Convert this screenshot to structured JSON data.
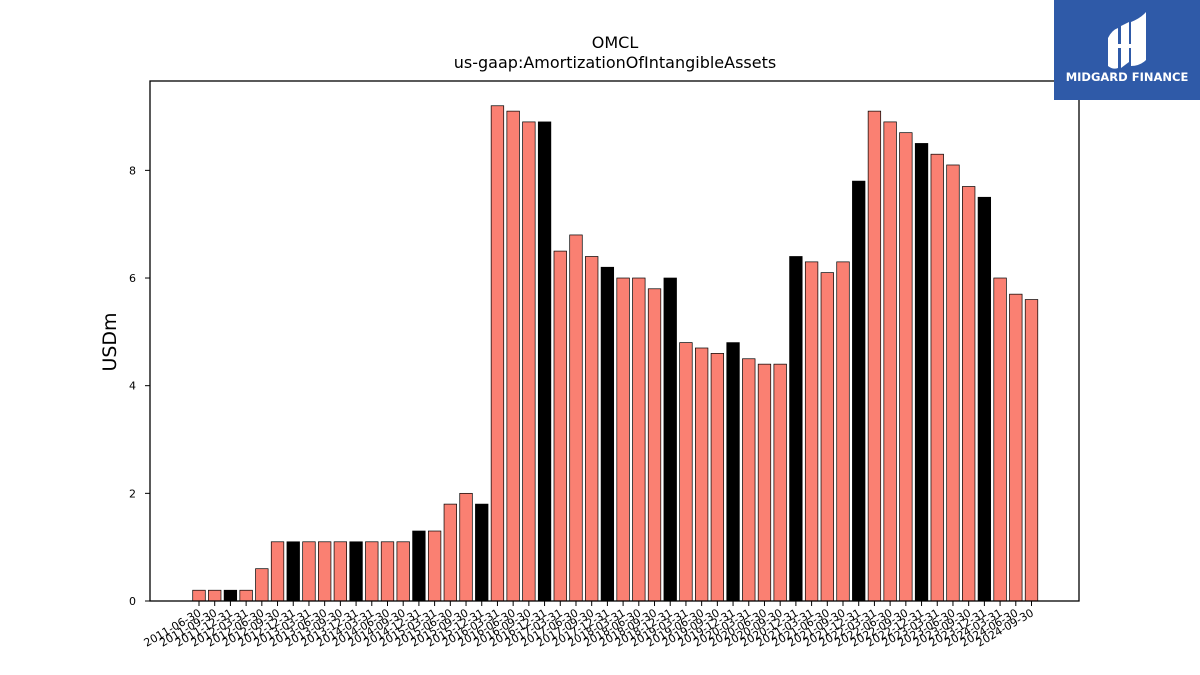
{
  "logo": {
    "text": "MIDGARD FINANCE",
    "background": "#2f5aa8"
  },
  "chart_data": {
    "type": "bar",
    "title": "OMCL",
    "subtitle": "us-gaap:AmortizationOfIntangibleAssets",
    "ylabel": "USDm",
    "xlabel": "",
    "ylim": [
      0,
      9.66
    ],
    "yticks": [
      0,
      2,
      4,
      6,
      8
    ],
    "grid": false,
    "colors": {
      "quarter": "#fa8072",
      "fiscal_year_end": "#000000",
      "edge": "#000000"
    },
    "categories": [
      "2011-06-30",
      "2011-09-30",
      "2011-12-31",
      "2012-03-31",
      "2012-06-30",
      "2012-09-30",
      "2012-12-31",
      "2013-03-31",
      "2013-06-30",
      "2013-09-30",
      "2013-12-31",
      "2014-03-31",
      "2014-06-30",
      "2014-09-30",
      "2014-12-31",
      "2015-03-31",
      "2015-06-30",
      "2015-09-30",
      "2015-12-31",
      "2016-03-31",
      "2016-06-30",
      "2016-09-30",
      "2016-12-31",
      "2017-03-31",
      "2017-06-30",
      "2017-09-30",
      "2017-12-31",
      "2018-03-31",
      "2018-06-30",
      "2018-09-30",
      "2018-12-31",
      "2019-03-31",
      "2019-06-30",
      "2019-09-30",
      "2019-12-31",
      "2020-03-31",
      "2020-06-30",
      "2020-09-30",
      "2020-12-31",
      "2021-03-31",
      "2021-06-30",
      "2021-09-30",
      "2021-12-31",
      "2022-03-31",
      "2022-06-30",
      "2022-09-30",
      "2022-12-31",
      "2023-03-31",
      "2023-06-30",
      "2023-09-30",
      "2023-12-31",
      "2024-03-31",
      "2024-06-30",
      "2024-09-30"
    ],
    "values": [
      0.2,
      0.2,
      0.2,
      0.2,
      0.6,
      1.1,
      1.1,
      1.1,
      1.1,
      1.1,
      1.1,
      1.1,
      1.1,
      1.1,
      1.3,
      1.3,
      1.8,
      2.0,
      1.8,
      9.2,
      9.1,
      8.9,
      8.9,
      6.5,
      6.8,
      6.4,
      6.2,
      6.0,
      6.0,
      5.8,
      6.0,
      4.8,
      4.7,
      4.6,
      4.8,
      4.5,
      4.4,
      4.4,
      6.4,
      6.3,
      6.1,
      6.3,
      7.8,
      9.1,
      8.9,
      8.7,
      8.5,
      8.3,
      8.1,
      7.7,
      7.5,
      6.0,
      5.7,
      5.6
    ],
    "fiscal_year_end": [
      false,
      false,
      true,
      false,
      false,
      false,
      true,
      false,
      false,
      false,
      true,
      false,
      false,
      false,
      true,
      false,
      false,
      false,
      true,
      false,
      false,
      false,
      true,
      false,
      false,
      false,
      true,
      false,
      false,
      false,
      true,
      false,
      false,
      false,
      true,
      false,
      false,
      false,
      true,
      false,
      false,
      false,
      true,
      false,
      false,
      false,
      true,
      false,
      false,
      false,
      true,
      false,
      false,
      false
    ]
  }
}
